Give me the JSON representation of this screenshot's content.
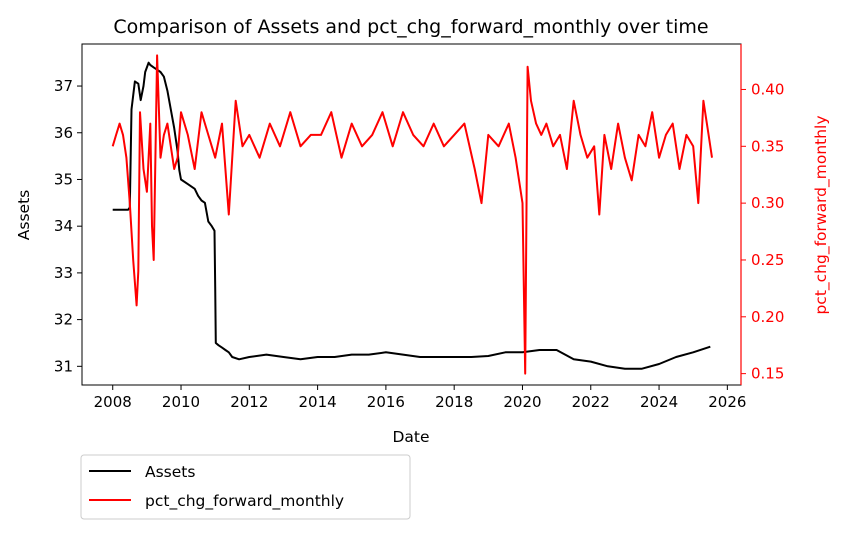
{
  "chart_data": {
    "type": "line",
    "title": "Comparison of Assets and pct_chg_forward_monthly over time",
    "xlabel": "Date",
    "ylabel": "Assets",
    "y2label": "pct_chg_forward_monthly",
    "x_ticks": [
      "2008",
      "2010",
      "2012",
      "2014",
      "2016",
      "2018",
      "2020",
      "2022",
      "2024",
      "2026"
    ],
    "xlim": [
      2007.1,
      2026.4
    ],
    "ylim": [
      30.6,
      37.9
    ],
    "y2lim": [
      0.14,
      0.44
    ],
    "y_ticks": [
      "31",
      "32",
      "33",
      "34",
      "35",
      "36",
      "37"
    ],
    "y2_ticks": [
      "0.15",
      "0.20",
      "0.25",
      "0.30",
      "0.35",
      "0.40"
    ],
    "legend": {
      "placement": "below-left",
      "entries": [
        "Assets",
        "pct_chg_forward_monthly"
      ]
    },
    "grid": false,
    "colors": {
      "Assets": "#000000",
      "pct_chg_forward_monthly": "#ff0000",
      "right_axis": "#ff0000"
    },
    "series": [
      {
        "name": "Assets",
        "axis": "left",
        "x": [
          2008.0,
          2008.45,
          2008.5,
          2008.55,
          2008.6,
          2008.65,
          2008.75,
          2008.82,
          2008.9,
          2008.95,
          2009.0,
          2009.05,
          2009.1,
          2009.2,
          2009.3,
          2009.4,
          2009.5,
          2009.6,
          2009.7,
          2009.8,
          2009.9,
          2009.95,
          2010.0,
          2010.2,
          2010.4,
          2010.5,
          2010.6,
          2010.7,
          2010.8,
          2010.9,
          2010.98,
          2011.0,
          2011.02,
          2011.1,
          2011.2,
          2011.3,
          2011.4,
          2011.5,
          2011.7,
          2012.0,
          2012.5,
          2013.0,
          2013.5,
          2014.0,
          2014.5,
          2015.0,
          2015.5,
          2016.0,
          2016.5,
          2017.0,
          2017.5,
          2018.0,
          2018.5,
          2019.0,
          2019.5,
          2020.0,
          2020.5,
          2021.0,
          2021.5,
          2022.0,
          2022.5,
          2023.0,
          2023.5,
          2024.0,
          2024.5,
          2025.0,
          2025.5
        ],
        "values": [
          34.35,
          34.35,
          34.4,
          36.5,
          36.8,
          37.1,
          37.05,
          36.7,
          37.0,
          37.3,
          37.4,
          37.5,
          37.45,
          37.4,
          37.35,
          37.3,
          37.2,
          36.9,
          36.5,
          36.1,
          35.6,
          35.2,
          35.0,
          34.9,
          34.8,
          34.65,
          34.55,
          34.5,
          34.1,
          34.0,
          33.9,
          32.7,
          31.5,
          31.45,
          31.4,
          31.35,
          31.3,
          31.2,
          31.15,
          31.2,
          31.25,
          31.2,
          31.15,
          31.2,
          31.2,
          31.25,
          31.25,
          31.3,
          31.25,
          31.2,
          31.2,
          31.2,
          31.2,
          31.22,
          31.3,
          31.3,
          31.35,
          31.35,
          31.15,
          31.1,
          31.0,
          30.95,
          30.95,
          31.05,
          31.2,
          31.3,
          31.42
        ]
      },
      {
        "name": "pct_chg_forward_monthly",
        "axis": "right",
        "x": [
          2008.0,
          2008.1,
          2008.2,
          2008.3,
          2008.4,
          2008.5,
          2008.6,
          2008.7,
          2008.75,
          2008.8,
          2008.9,
          2009.0,
          2009.1,
          2009.15,
          2009.2,
          2009.3,
          2009.4,
          2009.5,
          2009.6,
          2009.7,
          2009.8,
          2009.9,
          2010.0,
          2010.2,
          2010.4,
          2010.6,
          2010.8,
          2011.0,
          2011.2,
          2011.4,
          2011.6,
          2011.8,
          2012.0,
          2012.3,
          2012.6,
          2012.9,
          2013.2,
          2013.5,
          2013.8,
          2014.1,
          2014.4,
          2014.7,
          2015.0,
          2015.3,
          2015.6,
          2015.9,
          2016.2,
          2016.5,
          2016.8,
          2017.1,
          2017.4,
          2017.7,
          2018.0,
          2018.3,
          2018.6,
          2018.8,
          2019.0,
          2019.3,
          2019.6,
          2019.8,
          2020.0,
          2020.08,
          2020.15,
          2020.25,
          2020.4,
          2020.55,
          2020.7,
          2020.9,
          2021.1,
          2021.3,
          2021.5,
          2021.7,
          2021.9,
          2022.1,
          2022.25,
          2022.4,
          2022.6,
          2022.8,
          2023.0,
          2023.2,
          2023.4,
          2023.6,
          2023.8,
          2024.0,
          2024.2,
          2024.4,
          2024.6,
          2024.8,
          2025.0,
          2025.15,
          2025.3,
          2025.45,
          2025.55
        ],
        "values": [
          0.35,
          0.36,
          0.37,
          0.36,
          0.34,
          0.3,
          0.25,
          0.21,
          0.24,
          0.38,
          0.33,
          0.31,
          0.37,
          0.28,
          0.25,
          0.43,
          0.34,
          0.36,
          0.37,
          0.35,
          0.33,
          0.34,
          0.38,
          0.36,
          0.33,
          0.38,
          0.36,
          0.34,
          0.37,
          0.29,
          0.39,
          0.35,
          0.36,
          0.34,
          0.37,
          0.35,
          0.38,
          0.35,
          0.36,
          0.36,
          0.38,
          0.34,
          0.37,
          0.35,
          0.36,
          0.38,
          0.35,
          0.38,
          0.36,
          0.35,
          0.37,
          0.35,
          0.36,
          0.37,
          0.33,
          0.3,
          0.36,
          0.35,
          0.37,
          0.34,
          0.3,
          0.15,
          0.42,
          0.39,
          0.37,
          0.36,
          0.37,
          0.35,
          0.36,
          0.33,
          0.39,
          0.36,
          0.34,
          0.35,
          0.29,
          0.36,
          0.33,
          0.37,
          0.34,
          0.32,
          0.36,
          0.35,
          0.38,
          0.34,
          0.36,
          0.37,
          0.33,
          0.36,
          0.35,
          0.3,
          0.39,
          0.36,
          0.34
        ]
      }
    ]
  }
}
